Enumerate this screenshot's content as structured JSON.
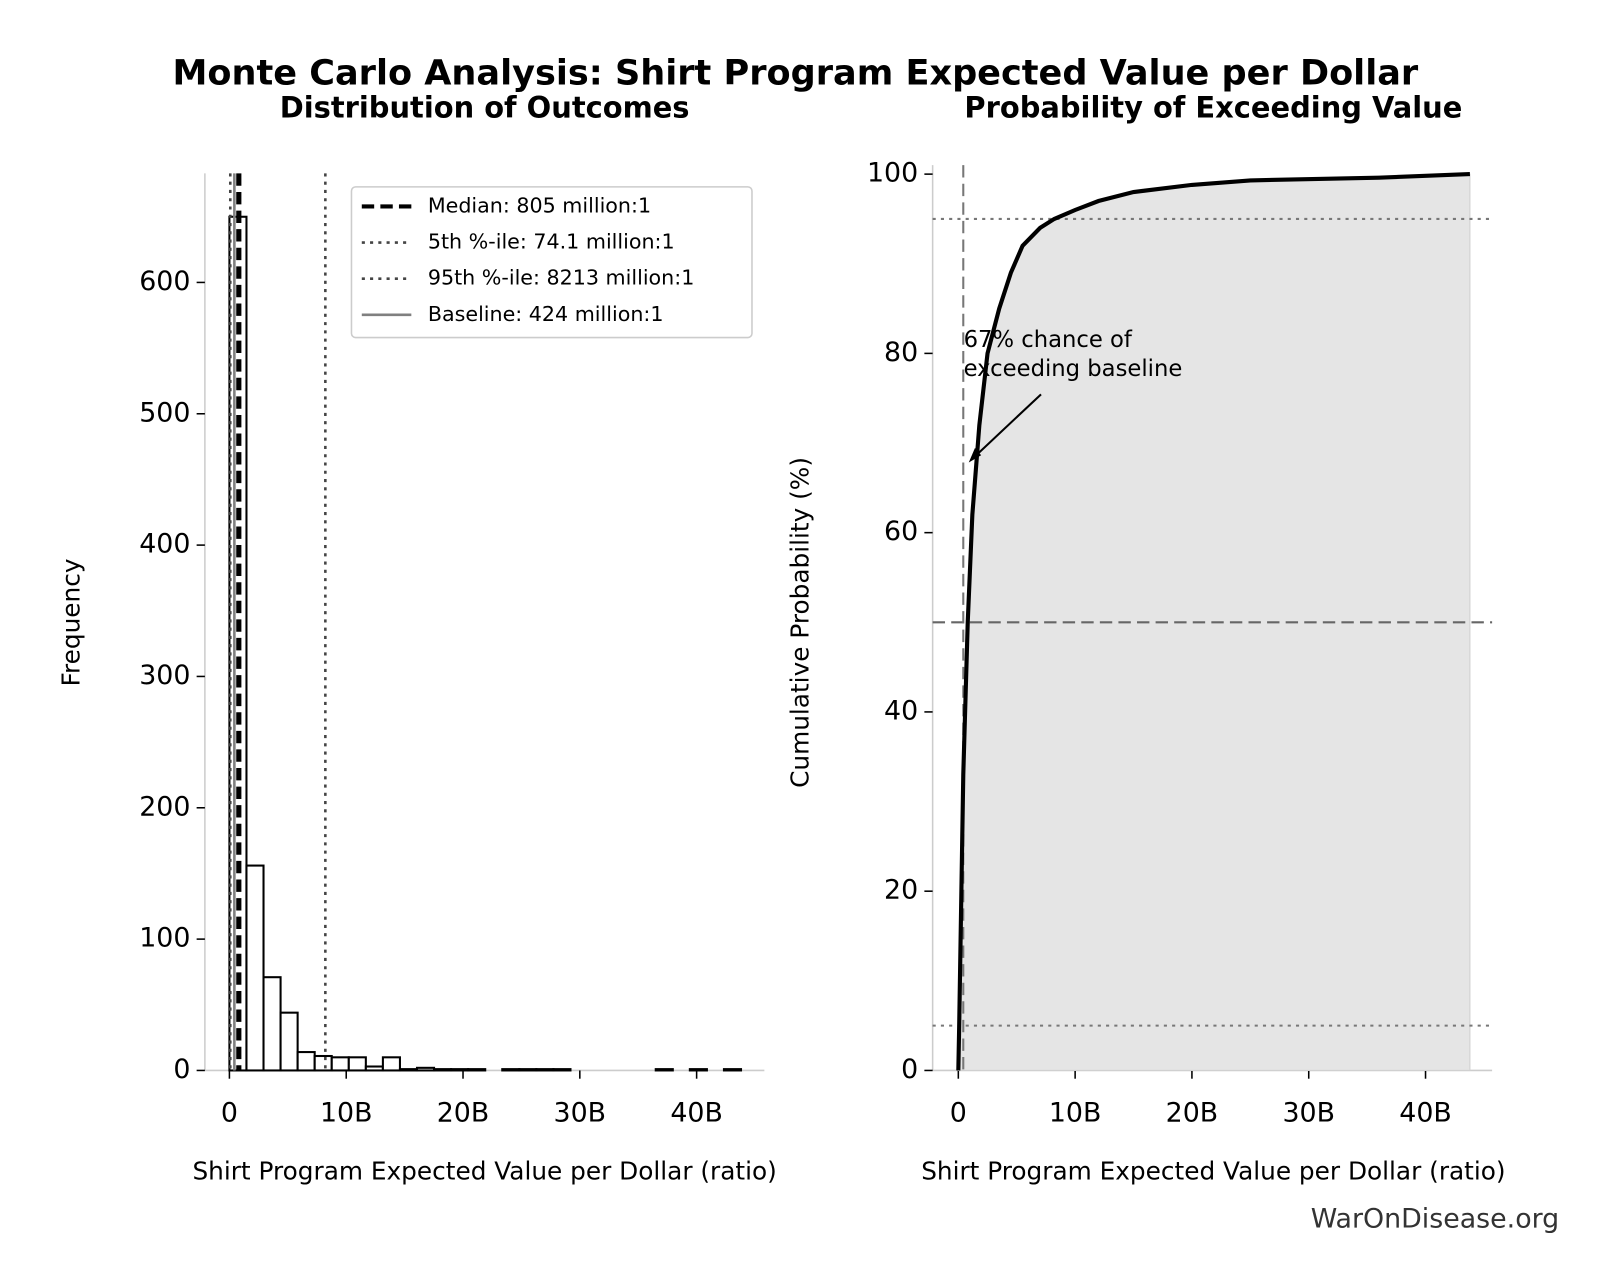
{
  "chart_data": [
    {
      "type": "histogram",
      "title": "Monte Carlo Analysis: Shirt Program Expected Value per Dollar",
      "subtitle": "Distribution of Outcomes",
      "x_label": "Shirt Program Expected Value per Dollar (ratio)",
      "y_label": "Frequency",
      "bins": [
        0,
        1460000000.0,
        2920000000.0,
        4380000000.0,
        5840000000.0,
        7300000000.0,
        8760000000.0,
        10220000000.0,
        11680000000.0,
        13140000000.0,
        14600000000.0,
        16060000000.0,
        17520000000.0,
        18980000000.0,
        20440000000.0,
        21900000000.0,
        23360000000.0,
        24820000000.0,
        26280000000.0,
        27740000000.0,
        29200000000.0,
        30660000000.0,
        32120000000.0,
        33580000000.0,
        35040000000.0,
        36500000000.0,
        37960000000.0,
        39420000000.0,
        40880000000.0,
        42340000000.0,
        43800000000.0
      ],
      "values": [
        650,
        156,
        71,
        44,
        14,
        11,
        10,
        10,
        3,
        10,
        1,
        2,
        1,
        1,
        1,
        0,
        1,
        1,
        1,
        1,
        0,
        0,
        0,
        0,
        0,
        1,
        0,
        1,
        0,
        1
      ],
      "color": "#ffffff",
      "edge_color": "#000000",
      "xlim": [
        -2100000000.0,
        45800000000.0
      ],
      "ylim": [
        0,
        683
      ],
      "xticks": [
        0,
        {
          "value": 10000000000,
          "label": "10B"
        },
        {
          "value": 20000000000,
          "label": "20B"
        },
        {
          "value": 30000000000,
          "label": "30B"
        },
        {
          "value": 40000000000,
          "label": "40B"
        }
      ],
      "yticks": [
        0,
        100,
        200,
        300,
        400,
        500,
        600
      ],
      "reference_lines": [
        {
          "label": "Median: 805 million:1",
          "value": 805000000,
          "color": "#000000",
          "style": "dashed"
        },
        {
          "label": "5th %-ile: 74.1 million:1",
          "value": 74100000,
          "color": "#444444",
          "style": "dotted"
        },
        {
          "label": "95th %-ile: 8213 million:1",
          "value": 8213000000,
          "color": "#444444",
          "style": "dotted"
        },
        {
          "label": "Baseline: 424 million:1",
          "value": 424000000,
          "color": "#808080",
          "style": "solid"
        }
      ],
      "legend": "upper right"
    },
    {
      "type": "line",
      "subtitle": "Probability of Exceeding Value",
      "x_label": "Shirt Program Expected Value per Dollar (ratio)",
      "y_label": "Cumulative Probability (%)",
      "x": [
        0,
        74100000,
        424000000,
        805000000,
        1200000000,
        1800000000,
        2500000000,
        3500000000,
        4500000000,
        5500000000,
        7000000000,
        8213000000,
        10000000000,
        12000000000,
        15000000000,
        20000000000,
        25000000000,
        36000000000,
        43800000000
      ],
      "values": [
        0,
        5,
        33,
        50,
        62,
        72,
        80,
        85,
        89,
        92,
        94,
        95,
        96,
        97,
        98,
        98.8,
        99.3,
        99.6,
        100
      ],
      "color": "#000000",
      "fill_color": "#e5e5e5",
      "xlim": [
        -2200000000.0,
        45700000000.0
      ],
      "ylim": [
        0,
        101
      ],
      "xticks": [
        0,
        {
          "value": 10000000000,
          "label": "10B"
        },
        {
          "value": 20000000000,
          "label": "20B"
        },
        {
          "value": 30000000000,
          "label": "30B"
        },
        {
          "value": 40000000000,
          "label": "40B"
        }
      ],
      "yticks": [
        0,
        20,
        40,
        60,
        80,
        100
      ],
      "hlines": [
        {
          "value": 5,
          "style": "dotted"
        },
        {
          "value": 50,
          "style": "dashed"
        },
        {
          "value": 95,
          "style": "dotted"
        }
      ],
      "vline": {
        "value": 424000000,
        "style": "dashed"
      },
      "annotation": [
        "67% chance of",
        "exceeding baseline"
      ],
      "source": "WarOnDisease.org"
    }
  ]
}
